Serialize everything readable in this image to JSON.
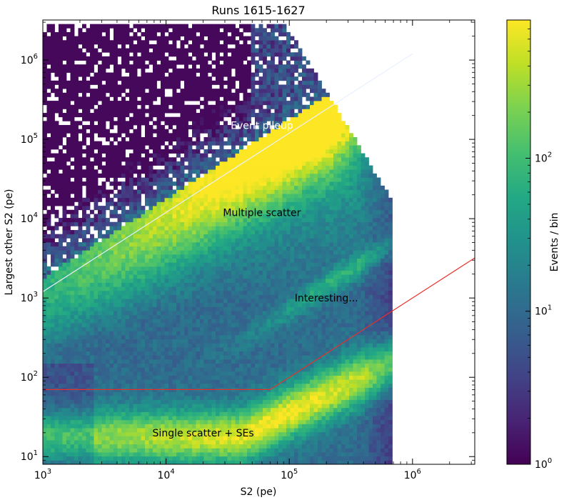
{
  "chart_data": {
    "type": "heatmap",
    "title": "Runs 1615-1627",
    "xlabel": "S2 (pe)",
    "ylabel": "Largest other S2 (pe)",
    "x_scale": "log",
    "y_scale": "log",
    "xlim": [
      1000,
      3200000
    ],
    "ylim": [
      8,
      3200000
    ],
    "x_ticks": [
      {
        "value": 1000,
        "base": "10",
        "exp": "3"
      },
      {
        "value": 10000,
        "base": "10",
        "exp": "4"
      },
      {
        "value": 100000,
        "base": "10",
        "exp": "5"
      },
      {
        "value": 1000000,
        "base": "10",
        "exp": "6"
      }
    ],
    "y_ticks": [
      {
        "value": 10,
        "base": "10",
        "exp": "1"
      },
      {
        "value": 100,
        "base": "10",
        "exp": "2"
      },
      {
        "value": 1000,
        "base": "10",
        "exp": "3"
      },
      {
        "value": 10000,
        "base": "10",
        "exp": "4"
      },
      {
        "value": 100000,
        "base": "10",
        "exp": "5"
      },
      {
        "value": 1000000,
        "base": "10",
        "exp": "6"
      }
    ],
    "colorbar": {
      "label": "Events / bin",
      "scale": "log",
      "range": [
        1,
        800
      ],
      "colormap": "viridis",
      "ticks": [
        {
          "value": 1,
          "base": "10",
          "exp": "0"
        },
        {
          "value": 10,
          "base": "10",
          "exp": "1"
        },
        {
          "value": 100,
          "base": "10",
          "exp": "2"
        }
      ]
    },
    "annotations": [
      {
        "text": "Event pileup",
        "x": 60000,
        "y": 150000,
        "color": "#ffffff"
      },
      {
        "text": "Multiple scatter",
        "x": 60000,
        "y": 12000,
        "color": "#000000"
      },
      {
        "text": "Interesting...",
        "x": 200000,
        "y": 1000,
        "color": "#000000"
      },
      {
        "text": "Single scatter + SEs",
        "x": 20000,
        "y": 20,
        "color": "#000000"
      }
    ],
    "lines": [
      {
        "name": "diagonal",
        "color": "#e8f0ff",
        "points": [
          [
            1000,
            1200
          ],
          [
            1000000,
            1200000
          ]
        ]
      },
      {
        "name": "cut",
        "color": "#e8302a",
        "points": [
          [
            1000,
            70
          ],
          [
            70000,
            70
          ],
          [
            3200000,
            3200
          ]
        ]
      }
    ],
    "grid": false
  }
}
